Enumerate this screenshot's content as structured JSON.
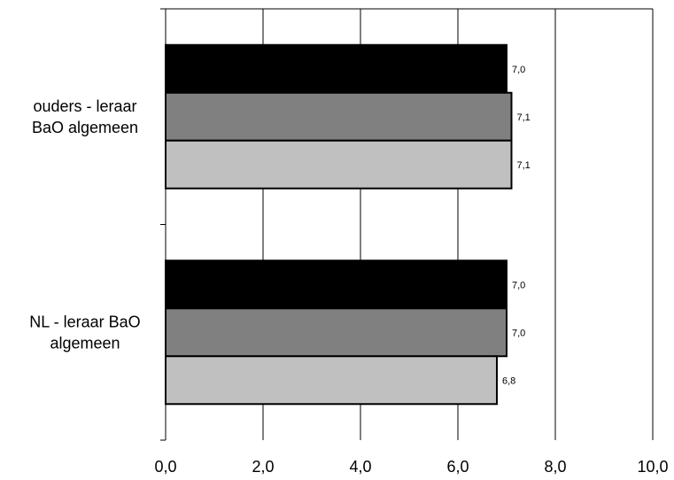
{
  "chart_data": {
    "type": "bar",
    "orientation": "horizontal",
    "title": "",
    "xlabel": "",
    "ylabel": "",
    "xlim": [
      0,
      10
    ],
    "x_ticks": [
      0,
      2,
      4,
      6,
      8,
      10
    ],
    "x_tick_labels": [
      "0,0",
      "2,0",
      "4,0",
      "6,0",
      "8,0",
      "10,0"
    ],
    "grid": true,
    "legend": "none",
    "categories": [
      {
        "lines": [
          "ouders - leraar",
          "BaO algemeen"
        ]
      },
      {
        "lines": [
          "NL - leraar BaO",
          "algemeen"
        ]
      }
    ],
    "series": [
      {
        "color": "#000000",
        "values": [
          7.0,
          7.0
        ],
        "labels": [
          "7,0",
          "7,0"
        ]
      },
      {
        "color": "#808080",
        "values": [
          7.1,
          7.0
        ],
        "labels": [
          "7,1",
          "7,0"
        ]
      },
      {
        "color": "#c0c0c0",
        "values": [
          7.1,
          6.8
        ],
        "labels": [
          "7,1",
          "6,8"
        ]
      }
    ]
  }
}
